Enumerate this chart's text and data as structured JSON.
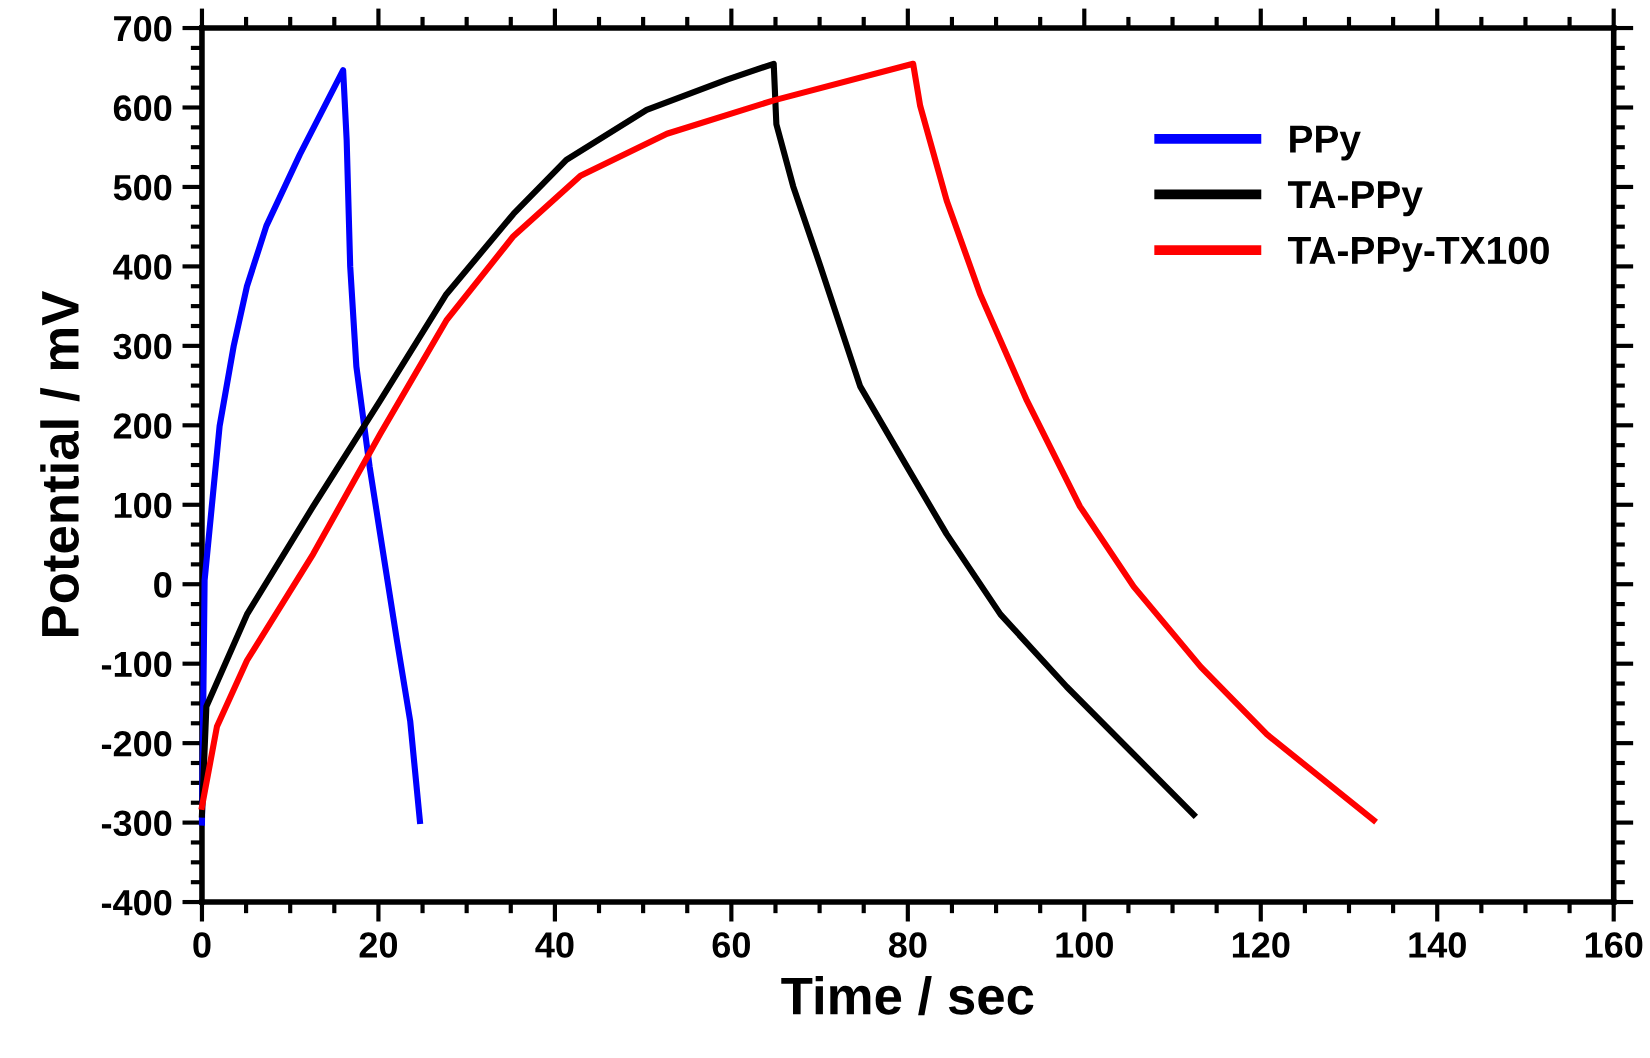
{
  "chart_data": {
    "type": "line",
    "xlabel": "Time / sec",
    "ylabel": "Potential / mV",
    "xlim": [
      0,
      160
    ],
    "xticks": [
      0,
      20,
      40,
      60,
      80,
      100,
      120,
      140,
      160
    ],
    "ylim": [
      -400,
      700
    ],
    "yticks": [
      -400,
      -300,
      -200,
      -100,
      0,
      100,
      200,
      300,
      400,
      500,
      600,
      700
    ],
    "grid": false,
    "legend": "top right",
    "marker": "none",
    "line_style": "solid",
    "series": [
      {
        "name": "PPy",
        "color": "#0000ff",
        "x": [
          0,
          0.3,
          2.0,
          3.6,
          5.1,
          7.3,
          11.1,
          16.0,
          16.4,
          16.8,
          17.5,
          19.0,
          20.2,
          22.1,
          23.6,
          24.7
        ],
        "values": [
          -300,
          5,
          199,
          300,
          375,
          451,
          541,
          647,
          559,
          400,
          274,
          148,
          63,
          -71,
          -172,
          -298
        ]
      },
      {
        "name": "TA-PPy",
        "color": "#000000",
        "x": [
          0,
          0.5,
          5.1,
          12.6,
          20.2,
          27.7,
          35.3,
          41.3,
          50.4,
          59.5,
          64.8,
          65.1,
          67.0,
          70.1,
          74.6,
          79.9,
          84.4,
          90.5,
          98.0,
          105.6,
          112.4
        ],
        "values": [
          -290,
          -154,
          -38,
          98,
          231,
          365,
          466,
          534,
          597,
          635,
          655,
          579,
          501,
          400,
          249,
          148,
          63,
          -38,
          -129,
          -214,
          -290
        ]
      },
      {
        "name": "TA-PPy-TX100",
        "color": "#ff0000",
        "x": [
          0,
          1.7,
          5.1,
          12.6,
          20.2,
          27.7,
          35.3,
          42.9,
          52.7,
          64.8,
          80.6,
          81.4,
          84.4,
          88.2,
          93.5,
          99.5,
          105.6,
          113.2,
          120.7,
          132.8
        ],
        "values": [
          -280,
          -179,
          -96,
          38,
          189,
          332,
          438,
          514,
          567,
          609,
          655,
          602,
          483,
          365,
          231,
          98,
          -3,
          -104,
          -189,
          -297
        ]
      }
    ]
  }
}
